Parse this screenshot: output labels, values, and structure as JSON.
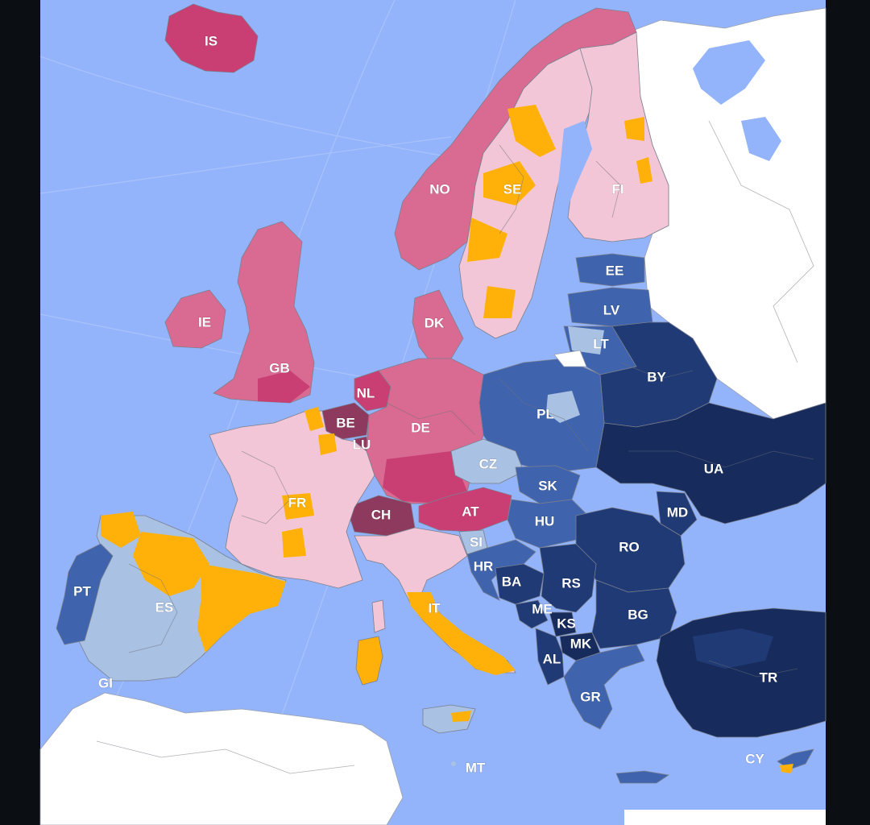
{
  "map": {
    "colors": {
      "sea": "#93b4fb",
      "frame": "#0b0f14",
      "non_data_land": "#ffffff",
      "light_pink": "#f2c6d6",
      "mid_pink": "#d96b92",
      "deep_pink": "#c93f74",
      "plum": "#8d3a5e",
      "orange": "#ffb10a",
      "pale_blue": "#a9c1e3",
      "mid_blue": "#3f64ad",
      "navy": "#1f3a75",
      "dark_navy": "#172c5c"
    },
    "labels": [
      {
        "code": "IS",
        "region": "pink"
      },
      {
        "code": "NO",
        "region": "pink"
      },
      {
        "code": "SE",
        "region": "pink"
      },
      {
        "code": "FI",
        "region": "pink"
      },
      {
        "code": "EE",
        "region": "blue"
      },
      {
        "code": "LV",
        "region": "blue"
      },
      {
        "code": "LT",
        "region": "blue"
      },
      {
        "code": "IE",
        "region": "pink"
      },
      {
        "code": "GB",
        "region": "pink"
      },
      {
        "code": "DK",
        "region": "pink"
      },
      {
        "code": "NL",
        "region": "pink"
      },
      {
        "code": "BE",
        "region": "pink"
      },
      {
        "code": "LU",
        "region": "pink"
      },
      {
        "code": "DE",
        "region": "pink"
      },
      {
        "code": "PL",
        "region": "blue"
      },
      {
        "code": "BY",
        "region": "blue"
      },
      {
        "code": "UA",
        "region": "blue"
      },
      {
        "code": "CZ",
        "region": "blue"
      },
      {
        "code": "SK",
        "region": "blue"
      },
      {
        "code": "FR",
        "region": "pink"
      },
      {
        "code": "CH",
        "region": "pink"
      },
      {
        "code": "AT",
        "region": "pink"
      },
      {
        "code": "HU",
        "region": "blue"
      },
      {
        "code": "MD",
        "region": "blue"
      },
      {
        "code": "SI",
        "region": "blue"
      },
      {
        "code": "RO",
        "region": "blue"
      },
      {
        "code": "HR",
        "region": "blue"
      },
      {
        "code": "BA",
        "region": "blue"
      },
      {
        "code": "RS",
        "region": "blue"
      },
      {
        "code": "PT",
        "region": "blue"
      },
      {
        "code": "ES",
        "region": "blue"
      },
      {
        "code": "IT",
        "region": "pink"
      },
      {
        "code": "ME",
        "region": "blue"
      },
      {
        "code": "KS",
        "region": "blue"
      },
      {
        "code": "BG",
        "region": "blue"
      },
      {
        "code": "MK",
        "region": "blue"
      },
      {
        "code": "AL",
        "region": "blue"
      },
      {
        "code": "GI",
        "region": "blue"
      },
      {
        "code": "GR",
        "region": "blue"
      },
      {
        "code": "TR",
        "region": "blue"
      },
      {
        "code": "CY",
        "region": "blue"
      },
      {
        "code": "MT",
        "region": "blue"
      }
    ]
  }
}
